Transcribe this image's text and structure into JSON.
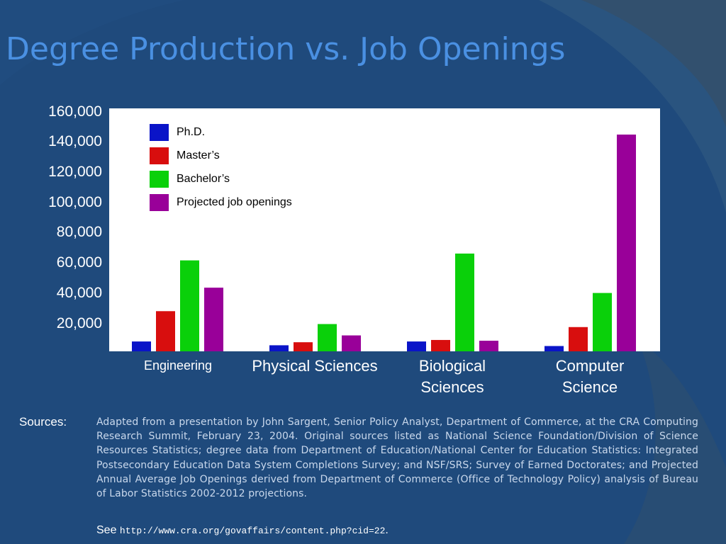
{
  "title": "Degree Production vs. Job Openings",
  "colors": {
    "background": "#1f4a7c",
    "title": "#4a90e2",
    "phd": "#0a14c8",
    "masters": "#d80e0e",
    "bachelors": "#0ad00a",
    "jobs": "#990099"
  },
  "chart_data": {
    "type": "bar",
    "categories": [
      "Engineering",
      "Physical Sciences",
      "Biological Sciences",
      "Computer Science"
    ],
    "category_labels": [
      [
        "Engineering"
      ],
      [
        "Physical Sciences"
      ],
      [
        "Biological",
        "Sciences"
      ],
      [
        "Computer",
        "Science"
      ]
    ],
    "series": [
      {
        "name": "Ph.D.",
        "values": [
          6500,
          4000,
          6500,
          3500
        ],
        "color": "#0a14c8"
      },
      {
        "name": "Master’s",
        "values": [
          26500,
          6000,
          7500,
          16000
        ],
        "color": "#d80e0e"
      },
      {
        "name": "Bachelor’s",
        "values": [
          60000,
          18000,
          64500,
          38500
        ],
        "color": "#0ad00a"
      },
      {
        "name": "Projected  job openings",
        "values": [
          42000,
          10500,
          7000,
          143000
        ],
        "color": "#990099"
      }
    ],
    "yticks": [
      "20,000",
      "40,000",
      "60,000",
      "80,000",
      "100,000",
      "120,000",
      "140,000",
      "160,000"
    ],
    "ylim": [
      0,
      160000
    ],
    "legend_position": "top-left",
    "grid": false
  },
  "sources": {
    "label": "Sources:",
    "text": "Adapted from a presentation by John Sargent, Senior Policy Analyst, Department of Commerce, at the CRA Computing Research Summit, February 23, 2004.  Original sources listed as National Science Foundation/Division of Science Resources Statistics; degree data from Department of Education/National Center for Education Statistics:  Integrated Postsecondary Education Data System Completions Survey; and NSF/SRS; Survey of Earned Doctorates; and Projected Annual Average Job Openings derived from Department of Commerce (Office of Technology Policy) analysis of Bureau of Labor Statistics 2002-2012 projections.",
    "see_prefix": "See",
    "url": "http://www.cra.org/govaffairs/content.php?cid=22",
    "see_suffix": "."
  }
}
